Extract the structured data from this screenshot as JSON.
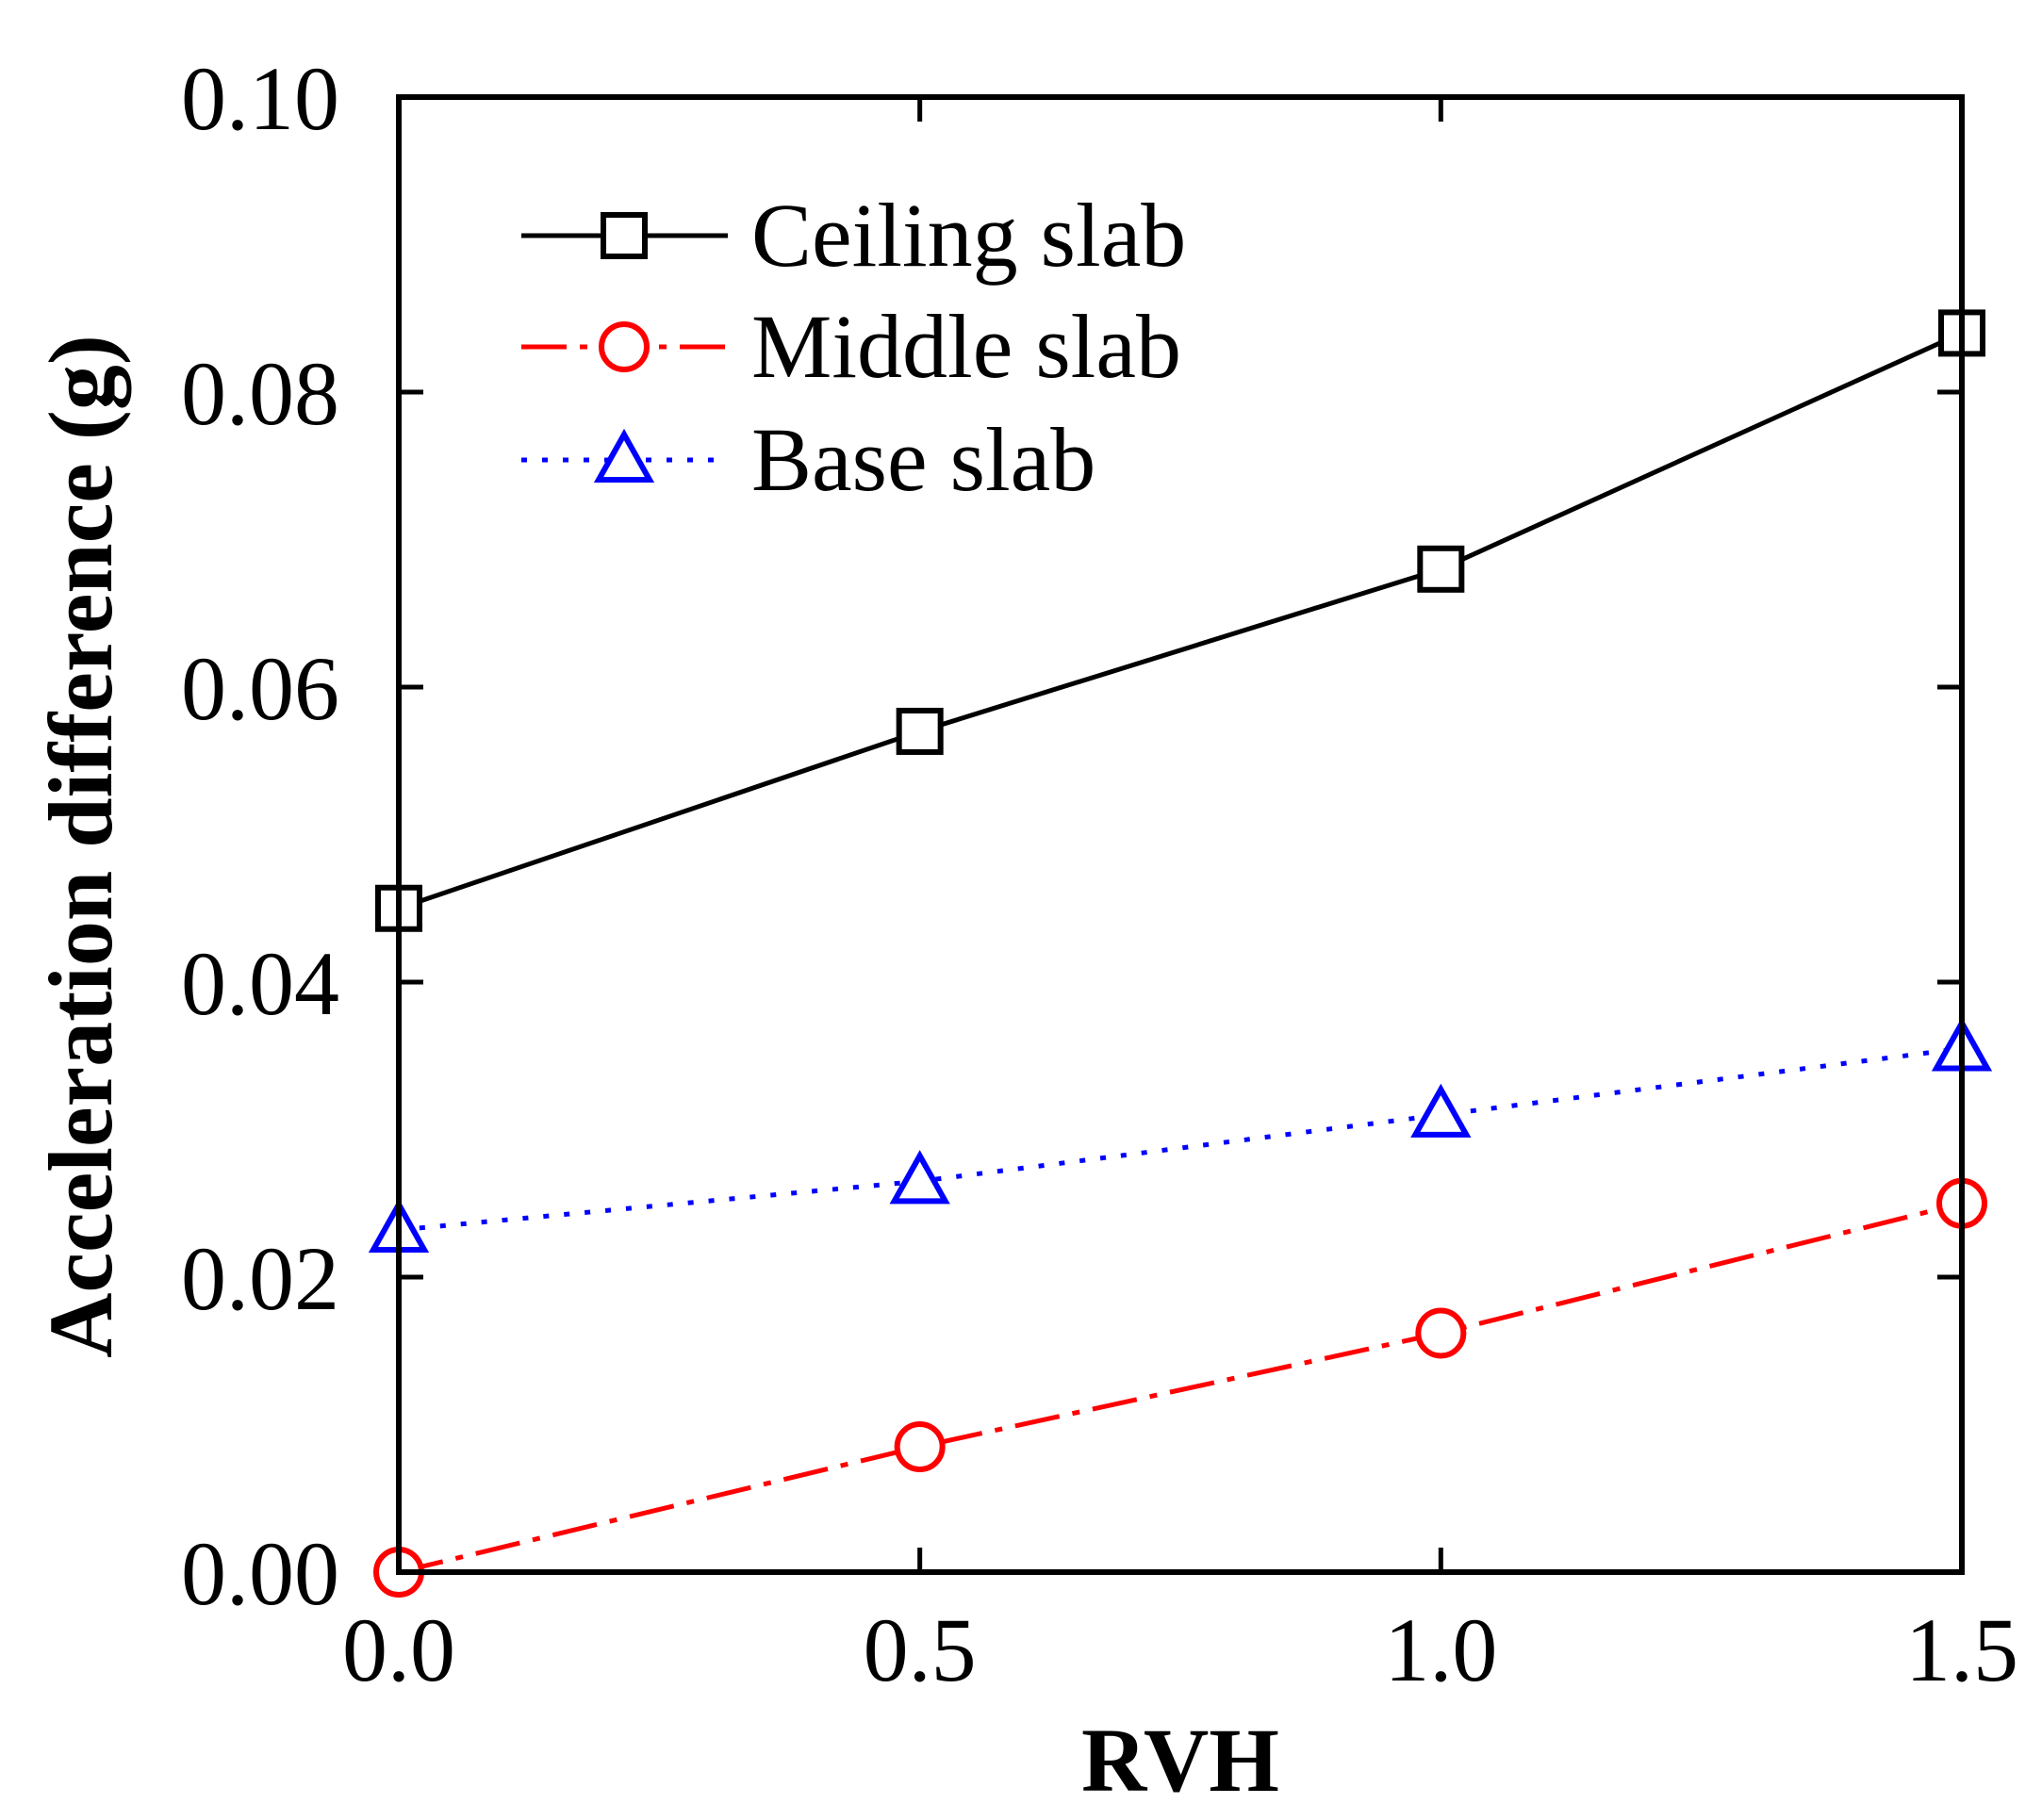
{
  "chart_data": {
    "type": "line",
    "xlabel": "RVH",
    "ylabel": "Acceleration difference (g)",
    "xlim": [
      0.0,
      1.5
    ],
    "ylim": [
      0.0,
      0.1
    ],
    "x": [
      0.0,
      0.5,
      1.0,
      1.5
    ],
    "xticks": [
      0.0,
      0.5,
      1.0,
      1.5
    ],
    "xtick_labels": [
      "0.0",
      "0.5",
      "1.0",
      "1.5"
    ],
    "yticks": [
      0.0,
      0.02,
      0.04,
      0.06,
      0.08,
      0.1
    ],
    "ytick_labels": [
      "0.00",
      "0.02",
      "0.04",
      "0.06",
      "0.08",
      "0.10"
    ],
    "grid": false,
    "legend_position": "top-left",
    "series": [
      {
        "name": "Ceiling slab",
        "values": [
          0.045,
          0.057,
          0.068,
          0.084
        ],
        "color": "#000000",
        "marker": "square",
        "line": "solid"
      },
      {
        "name": "Middle slab",
        "values": [
          0.0,
          0.0085,
          0.0162,
          0.025
        ],
        "color": "#ff0000",
        "marker": "circle",
        "line": "dash-dot"
      },
      {
        "name": "Base slab",
        "values": [
          0.0232,
          0.0265,
          0.031,
          0.0355
        ],
        "color": "#0000ff",
        "marker": "triangle",
        "line": "dotted"
      }
    ]
  }
}
